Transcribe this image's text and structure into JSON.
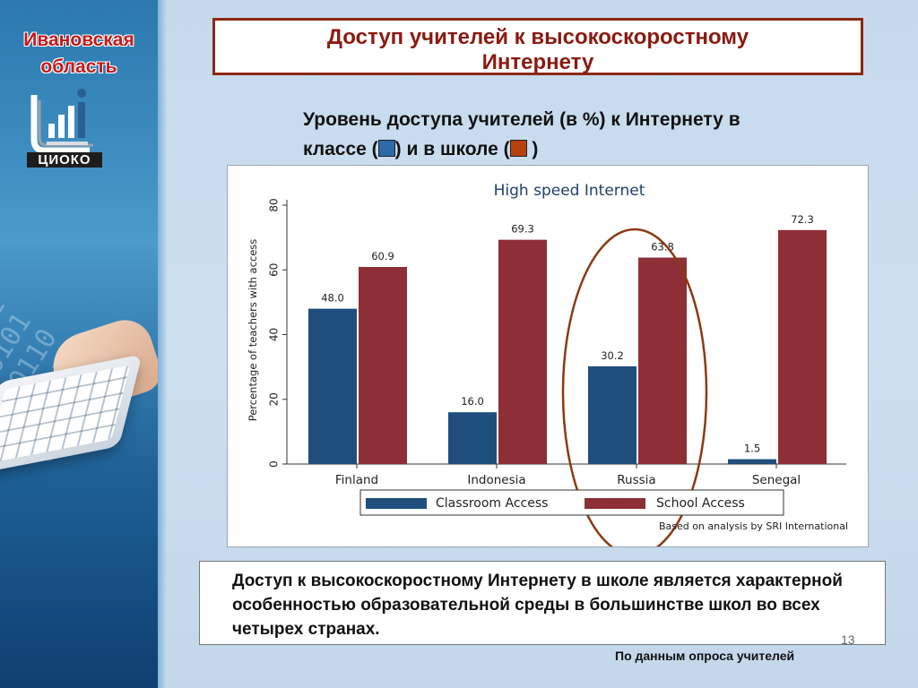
{
  "sidebar": {
    "region_line1": "Ивановская",
    "region_line2": "область",
    "logo_text": "ЦИОКО"
  },
  "slide": {
    "title_line1": "Доступ учителей к высокоскоростному",
    "title_line2": "Интернету",
    "subtitle_line1": "Уровень доступа учителей (в %) к Интернету в",
    "subtitle_p1": "классе (",
    "subtitle_p2": ") и в школе (",
    "subtitle_p3": " )",
    "summary": "Доступ к высокоскоростному Интернету в школе является характерной особенностью образовательной среды в большинстве школ во всех четырех странах.",
    "source_note": "По данным опроса учителей",
    "page_number": "13"
  },
  "chart_data": {
    "type": "bar",
    "title": "High speed Internet",
    "ylabel": "Percentage of teachers with access",
    "xlabel": "",
    "ylim": [
      0,
      80
    ],
    "yticks": [
      0,
      20,
      40,
      60,
      80
    ],
    "categories": [
      "Finland",
      "Indonesia",
      "Russia",
      "Senegal"
    ],
    "series": [
      {
        "name": "Classroom Access",
        "values": [
          48.0,
          16.0,
          30.2,
          1.5
        ],
        "labels": [
          "48.0",
          "16.0",
          "30.2",
          "1.5"
        ],
        "color": "#1f4e7c"
      },
      {
        "name": "School Access",
        "values": [
          60.9,
          69.3,
          63.8,
          72.3
        ],
        "labels": [
          "60.9",
          "69.3",
          "63.8",
          "72.3"
        ],
        "color": "#8e2e36"
      }
    ],
    "legend_position": "bottom",
    "grid": false,
    "highlight": "Russia",
    "highlight_color": "#8b3a12",
    "annotation": "Based on analysis by SRI International"
  }
}
